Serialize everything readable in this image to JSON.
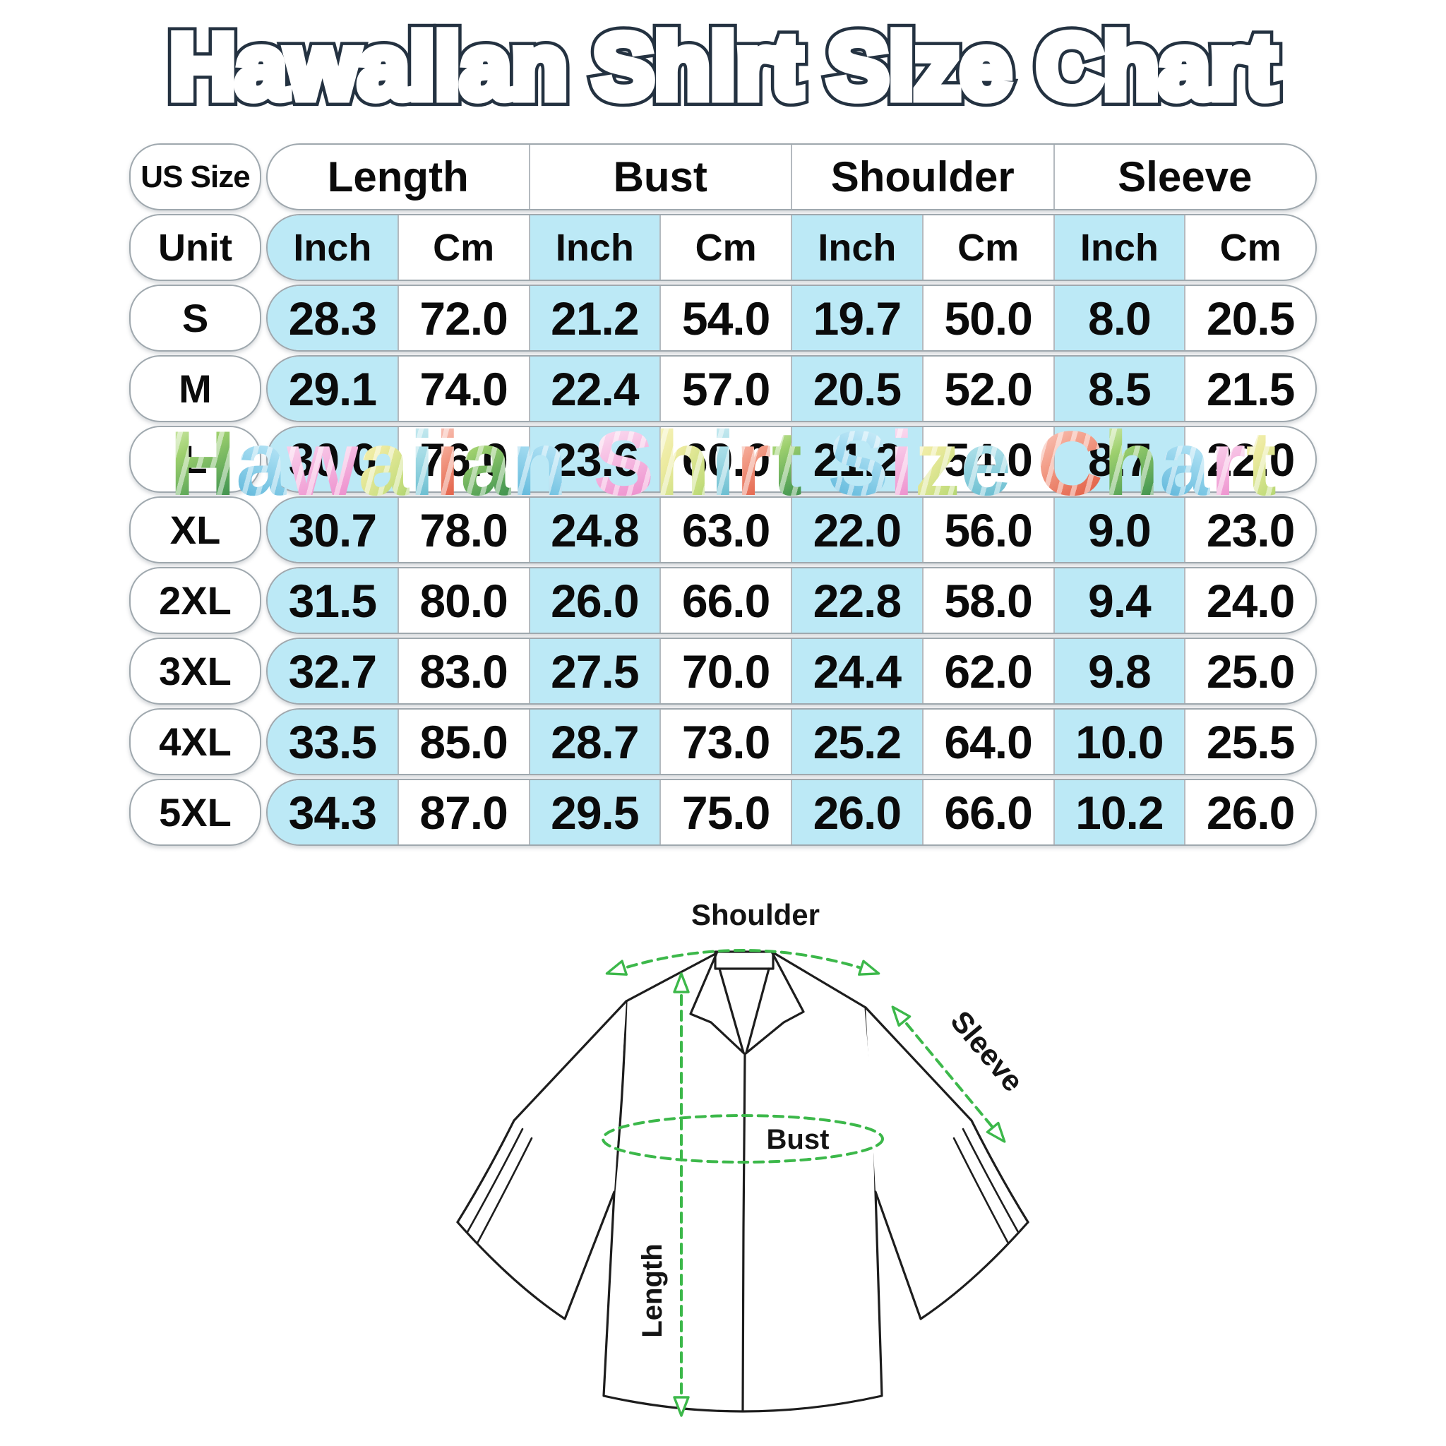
{
  "title": "Hawaiian Shirt Size Chart",
  "table": {
    "corner_label": "US Size",
    "unit_label": "Unit",
    "groups": [
      "Length",
      "Bust",
      "Shoulder",
      "Sleeve"
    ],
    "units": [
      "Inch",
      "Cm",
      "Inch",
      "Cm",
      "Inch",
      "Cm",
      "Inch",
      "Cm"
    ],
    "rows": [
      {
        "size": "S",
        "values": [
          "28.3",
          "72.0",
          "21.2",
          "54.0",
          "19.7",
          "50.0",
          "8.0",
          "20.5"
        ]
      },
      {
        "size": "M",
        "values": [
          "29.1",
          "74.0",
          "22.4",
          "57.0",
          "20.5",
          "52.0",
          "8.5",
          "21.5"
        ]
      },
      {
        "size": "L",
        "values": [
          "30.0",
          "76.0",
          "23.6",
          "60.0",
          "21.2",
          "54.0",
          "8.7",
          "22.0"
        ]
      },
      {
        "size": "XL",
        "values": [
          "30.7",
          "78.0",
          "24.8",
          "63.0",
          "22.0",
          "56.0",
          "9.0",
          "23.0"
        ]
      },
      {
        "size": "2XL",
        "values": [
          "31.5",
          "80.0",
          "26.0",
          "66.0",
          "22.8",
          "58.0",
          "9.4",
          "24.0"
        ]
      },
      {
        "size": "3XL",
        "values": [
          "32.7",
          "83.0",
          "27.5",
          "70.0",
          "24.4",
          "62.0",
          "9.8",
          "25.0"
        ]
      },
      {
        "size": "4XL",
        "values": [
          "33.5",
          "85.0",
          "28.7",
          "73.0",
          "25.2",
          "64.0",
          "10.0",
          "25.5"
        ]
      },
      {
        "size": "5XL",
        "values": [
          "34.3",
          "87.0",
          "29.5",
          "75.0",
          "26.0",
          "66.0",
          "10.2",
          "26.0"
        ]
      }
    ]
  },
  "diagram": {
    "labels": {
      "shoulder": "Shoulder",
      "sleeve": "Sleeve",
      "bust": "Bust",
      "length": "Length"
    }
  },
  "colors": {
    "highlight": "#bce9f6",
    "border": "#9fa8ae",
    "cellline": "#b4babf",
    "green": "#3cb84a",
    "ink": "#141414"
  }
}
